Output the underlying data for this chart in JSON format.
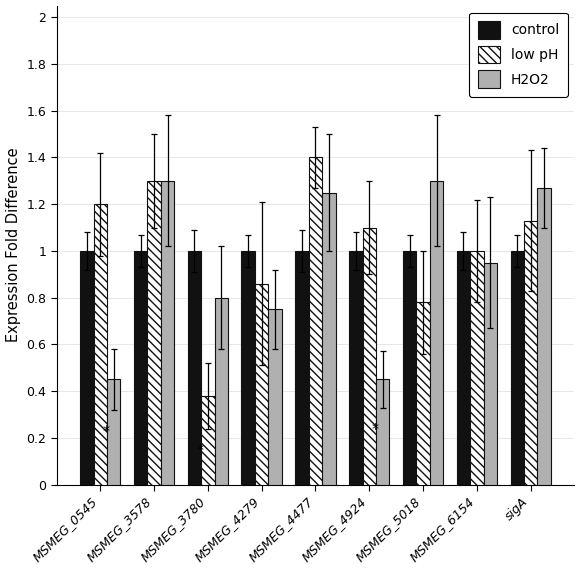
{
  "categories": [
    "MSMEG_0545",
    "MSMEG_3578",
    "MSMEG_3780",
    "MSMEG_4279",
    "MSMEG_4477",
    "MSMEG_4924",
    "MSMEG_5018",
    "MSMEG_6154",
    "sigA"
  ],
  "control": [
    1.0,
    1.0,
    1.0,
    1.0,
    1.0,
    1.0,
    1.0,
    1.0,
    1.0
  ],
  "low_pH": [
    1.2,
    1.3,
    0.38,
    0.86,
    1.4,
    1.1,
    0.78,
    1.0,
    1.13
  ],
  "h2o2": [
    0.45,
    1.3,
    0.8,
    0.75,
    1.25,
    0.45,
    1.3,
    0.95,
    1.27
  ],
  "control_err": [
    0.08,
    0.07,
    0.09,
    0.07,
    0.09,
    0.08,
    0.07,
    0.08,
    0.07
  ],
  "low_pH_err": [
    0.22,
    0.2,
    0.14,
    0.35,
    0.13,
    0.2,
    0.22,
    0.22,
    0.3
  ],
  "h2o2_err": [
    0.13,
    0.28,
    0.22,
    0.17,
    0.25,
    0.12,
    0.28,
    0.28,
    0.17
  ],
  "ylabel": "Expression Fold Difference",
  "ylim": [
    0,
    2.05
  ],
  "yticks": [
    0,
    0.2,
    0.4,
    0.6,
    0.8,
    1.0,
    1.2,
    1.4,
    1.6,
    1.8,
    2
  ],
  "ytick_labels": [
    "0",
    "0.2",
    "0.4",
    "0.6",
    "0.8",
    "1",
    "1.2",
    "1.4",
    "1.6",
    "1.8",
    "2"
  ],
  "legend_labels": [
    "control",
    "low pH",
    "H2O2"
  ],
  "control_color": "#111111",
  "low_pH_color": "#ffffff",
  "h2o2_color": "#b0b0b0",
  "bar_edge_color": "#111111",
  "hatch_pattern": "\\\\\\\\",
  "star_locs": [
    [
      0,
      "h2o2"
    ],
    [
      2,
      "low_pH"
    ],
    [
      5,
      "h2o2"
    ]
  ],
  "bar_width": 0.25,
  "figwidth": 5.8,
  "figheight": 5.7
}
